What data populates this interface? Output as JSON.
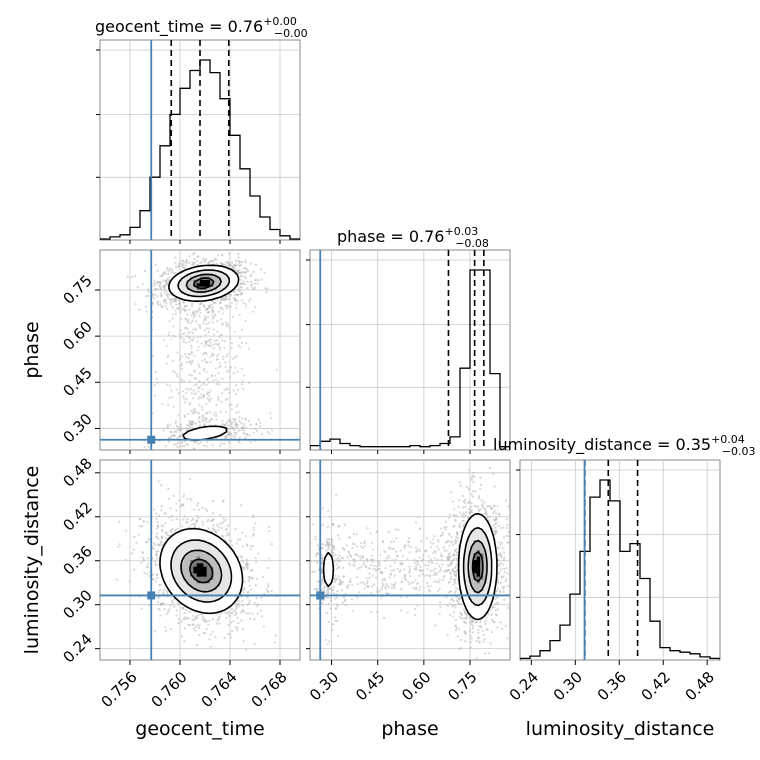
{
  "figure": {
    "accent_color": "#4682b4",
    "hist_color": "#000000",
    "scatter_color": "#b4b4b4"
  },
  "chart_data": {
    "type": "corner",
    "parameters": [
      {
        "name": "geocent_time",
        "title_prefix": "geocent_time = 0.76",
        "title_plus": "+0.00",
        "title_minus": "−0.00",
        "range": [
          0.7536,
          0.7696
        ],
        "ticks": [
          0.756,
          0.76,
          0.764,
          0.768
        ],
        "tick_labels": [
          "0.756",
          "0.760",
          "0.764",
          "0.768"
        ],
        "truth": 0.7577,
        "quantiles": [
          0.7593,
          0.7616,
          0.7639
        ],
        "hist_bins": [
          0.7536,
          0.7544,
          0.7552,
          0.756,
          0.7568,
          0.7576,
          0.7584,
          0.7592,
          0.76,
          0.7608,
          0.7616,
          0.7624,
          0.7632,
          0.764,
          0.7648,
          0.7656,
          0.7664,
          0.7672,
          0.768,
          0.7688,
          0.7696
        ],
        "hist_counts": [
          1,
          3,
          5,
          12,
          28,
          60,
          90,
          120,
          145,
          162,
          172,
          160,
          135,
          100,
          68,
          42,
          22,
          10,
          4,
          1
        ]
      },
      {
        "name": "phase",
        "title_prefix": "phase = 0.76",
        "title_plus": "+0.03",
        "title_minus": "−0.08",
        "range": [
          0.23,
          0.88
        ],
        "ticks": [
          0.3,
          0.45,
          0.6,
          0.75
        ],
        "tick_labels": [
          "0.30",
          "0.45",
          "0.60",
          "0.75"
        ],
        "truth": 0.2633,
        "quantiles": [
          0.68,
          0.765,
          0.795
        ],
        "hist_bins": [
          0.23,
          0.2625,
          0.295,
          0.3275,
          0.36,
          0.3925,
          0.425,
          0.4575,
          0.49,
          0.5225,
          0.555,
          0.5875,
          0.62,
          0.6525,
          0.685,
          0.7175,
          0.75,
          0.7825,
          0.815,
          0.8475,
          0.88
        ],
        "hist_counts": [
          4,
          8,
          10,
          6,
          4,
          3,
          3,
          3,
          3,
          3,
          4,
          3,
          4,
          6,
          12,
          75,
          165,
          165,
          70,
          3
        ]
      },
      {
        "name": "luminosity_distance",
        "title_prefix": "luminosity_distance = 0.35",
        "title_plus": "+0.04",
        "title_minus": "−0.03",
        "range": [
          0.2245,
          0.4975
        ],
        "ticks": [
          0.24,
          0.3,
          0.36,
          0.42,
          0.48
        ],
        "tick_labels": [
          "0.24",
          "0.30",
          "0.36",
          "0.42",
          "0.48"
        ],
        "truth": 0.3126,
        "quantiles": [
          0.313,
          0.345,
          0.385
        ],
        "hist_bins": [
          0.2245,
          0.2382,
          0.2518,
          0.2655,
          0.2791,
          0.2928,
          0.3064,
          0.3201,
          0.3337,
          0.3474,
          0.361,
          0.3747,
          0.3883,
          0.402,
          0.4156,
          0.4293,
          0.4429,
          0.4566,
          0.4702,
          0.4839,
          0.4975
        ],
        "hist_counts": [
          2,
          5,
          12,
          25,
          45,
          85,
          140,
          210,
          232,
          205,
          140,
          150,
          105,
          50,
          16,
          12,
          10,
          8,
          4,
          2
        ]
      }
    ],
    "contour_regions": [
      {
        "x_param": "geocent_time",
        "y_param": "phase",
        "modes": [
          {
            "center": [
              0.7619,
              0.772
            ],
            "sigma": [
              0.00135,
              0.028
            ],
            "weight": 0.82,
            "corr": 0.2
          },
          {
            "center": [
              0.762,
              0.285
            ],
            "sigma": [
              0.0016,
              0.02
            ],
            "weight": 0.18,
            "corr": 0.45
          }
        ]
      },
      {
        "x_param": "geocent_time",
        "y_param": "luminosity_distance",
        "modes": [
          {
            "center": [
              0.7617,
              0.346
            ],
            "sigma": [
              0.0016,
              0.028
            ],
            "weight": 1.0,
            "corr": -0.2
          }
        ]
      },
      {
        "x_param": "phase",
        "y_param": "luminosity_distance",
        "modes": [
          {
            "center": [
              0.775,
              0.352
            ],
            "sigma": [
              0.03,
              0.035
            ],
            "weight": 0.85,
            "corr": 0.0
          },
          {
            "center": [
              0.29,
              0.348
            ],
            "sigma": [
              0.018,
              0.026
            ],
            "weight": 0.15,
            "corr": 0.0
          }
        ]
      }
    ]
  }
}
